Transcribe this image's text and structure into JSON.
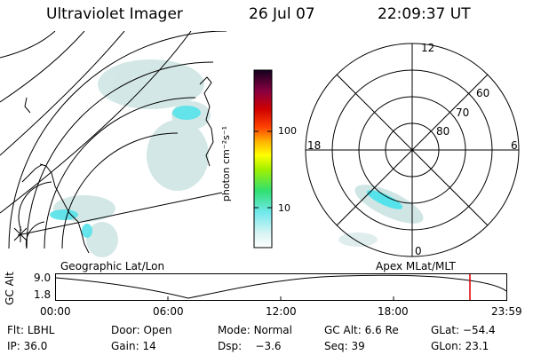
{
  "header": {
    "title": "Ultraviolet Imager",
    "date": "26 Jul 07",
    "time": "22:09:37 UT"
  },
  "colorbar": {
    "unit_label": "photon cm⁻²s⁻¹",
    "ticks": [
      "100",
      "10"
    ]
  },
  "polar_plot": {
    "hour_labels": {
      "top": "12",
      "left": "18",
      "right": "6",
      "bottom": "0"
    },
    "lat_labels": [
      "60",
      "70",
      "80"
    ]
  },
  "timeline": {
    "ylabel": "GC Alt",
    "yticks": [
      "9.0",
      "1.8"
    ],
    "left_title": "Geographic Lat/Lon",
    "right_title": "Apex MLat/MLT",
    "xticks": [
      "00:00",
      "06:00",
      "12:00",
      "18:00",
      "23:59"
    ],
    "marker_color": "#e00000"
  },
  "status": {
    "row1": [
      {
        "key": "Flt:",
        "value": "LBHL"
      },
      {
        "key": "Door:",
        "value": "Open"
      },
      {
        "key": "Mode:",
        "value": "Normal"
      },
      {
        "key": "GC Alt:",
        "value": "6.6 Re"
      },
      {
        "key": "GLat:",
        "value": "−54.4"
      }
    ],
    "row2": [
      {
        "key": "IP:",
        "value": "36.0"
      },
      {
        "key": "Gain:",
        "value": "14"
      },
      {
        "key": "Dsp:",
        "value": "−3.6"
      },
      {
        "key": "Seq:",
        "value": "39"
      },
      {
        "key": "GLon:",
        "value": "23.1"
      }
    ]
  }
}
